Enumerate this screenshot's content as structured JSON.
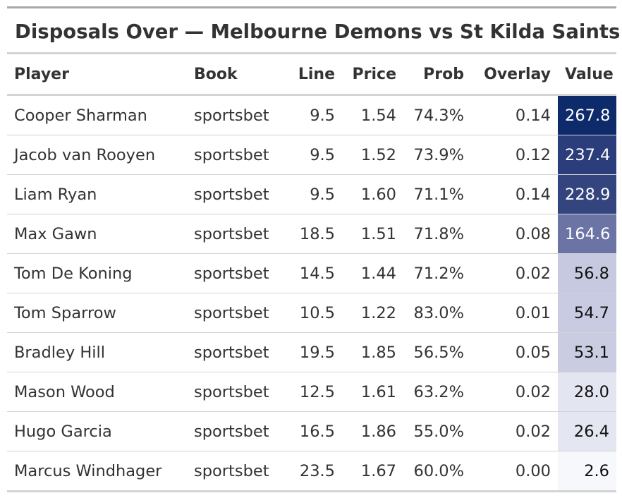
{
  "title": "Disposals Over — Melbourne Demons vs St Kilda Saints",
  "columns": {
    "player": "Player",
    "book": "Book",
    "line": "Line",
    "price": "Price",
    "prob": "Prob",
    "overlay": "Overlay",
    "value": "Value"
  },
  "rows": [
    {
      "player": "Cooper Sharman",
      "book": "sportsbet",
      "line": "9.5",
      "price": "1.54",
      "prob": "74.3%",
      "overlay": "0.14",
      "value": "267.8",
      "value_bg": "#0d2a6b",
      "value_fg": "#ffffff"
    },
    {
      "player": "Jacob van Rooyen",
      "book": "sportsbet",
      "line": "9.5",
      "price": "1.52",
      "prob": "73.9%",
      "overlay": "0.12",
      "value": "237.4",
      "value_bg": "#2c3d7c",
      "value_fg": "#ffffff"
    },
    {
      "player": "Liam Ryan",
      "book": "sportsbet",
      "line": "9.5",
      "price": "1.60",
      "prob": "71.1%",
      "overlay": "0.14",
      "value": "228.9",
      "value_bg": "#34447f",
      "value_fg": "#ffffff"
    },
    {
      "player": "Max Gawn",
      "book": "sportsbet",
      "line": "18.5",
      "price": "1.51",
      "prob": "71.8%",
      "overlay": "0.08",
      "value": "164.6",
      "value_bg": "#6b74a4",
      "value_fg": "#ffffff"
    },
    {
      "player": "Tom De Koning",
      "book": "sportsbet",
      "line": "14.5",
      "price": "1.44",
      "prob": "71.2%",
      "overlay": "0.02",
      "value": "56.8",
      "value_bg": "#c6c9df",
      "value_fg": "#111111"
    },
    {
      "player": "Tom Sparrow",
      "book": "sportsbet",
      "line": "10.5",
      "price": "1.22",
      "prob": "83.0%",
      "overlay": "0.01",
      "value": "54.7",
      "value_bg": "#c8cbe1",
      "value_fg": "#111111"
    },
    {
      "player": "Bradley Hill",
      "book": "sportsbet",
      "line": "19.5",
      "price": "1.85",
      "prob": "56.5%",
      "overlay": "0.05",
      "value": "53.1",
      "value_bg": "#cacde2",
      "value_fg": "#111111"
    },
    {
      "player": "Mason Wood",
      "book": "sportsbet",
      "line": "12.5",
      "price": "1.61",
      "prob": "63.2%",
      "overlay": "0.02",
      "value": "28.0",
      "value_bg": "#e3e5f0",
      "value_fg": "#111111"
    },
    {
      "player": "Hugo Garcia",
      "book": "sportsbet",
      "line": "16.5",
      "price": "1.86",
      "prob": "55.0%",
      "overlay": "0.02",
      "value": "26.4",
      "value_bg": "#e4e6f1",
      "value_fg": "#111111"
    },
    {
      "player": "Marcus Windhager",
      "book": "sportsbet",
      "line": "23.5",
      "price": "1.67",
      "prob": "60.0%",
      "overlay": "0.00",
      "value": "2.6",
      "value_bg": "#f6f8fc",
      "value_fg": "#111111"
    }
  ]
}
